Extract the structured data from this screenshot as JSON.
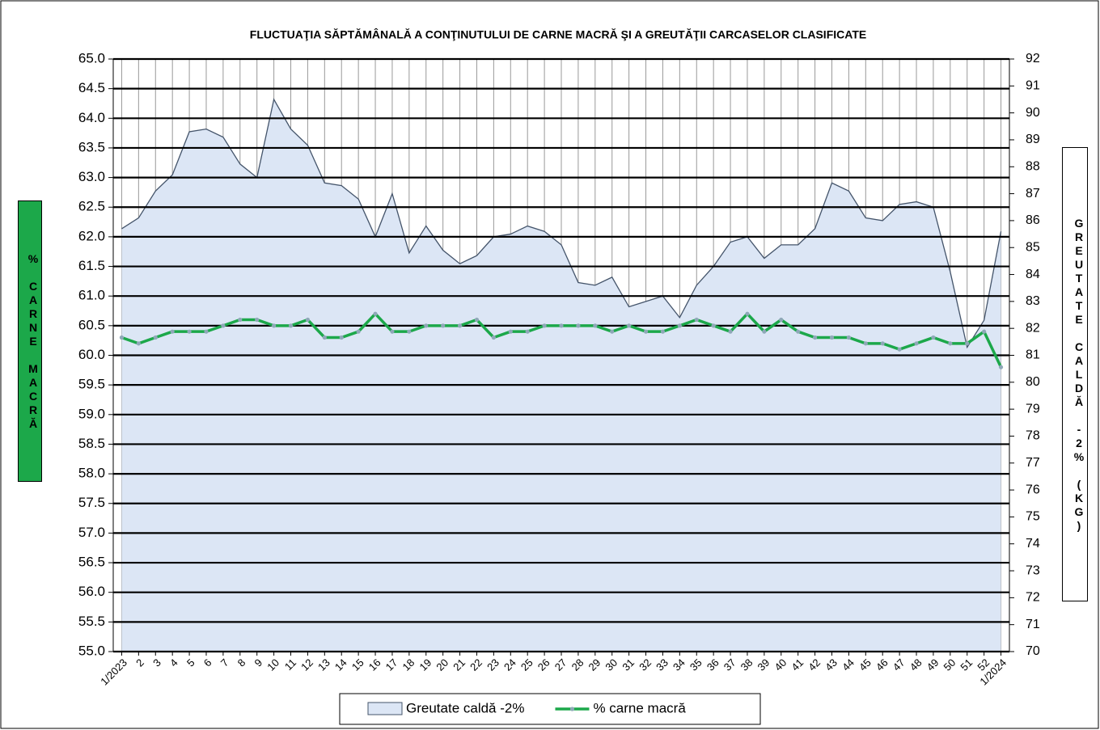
{
  "chart_data": {
    "type": "combo",
    "title": "FLUCTUAŢIA SĂPTĂMÂNALĂ  A CONŢINUTULUI DE CARNE MACRĂ ŞI A GREUTĂŢII CARCASELOR CLASIFICATE",
    "y_label": "% CARNE MACRĂ",
    "y2_label": "GREUTATE CALDĂ -2% (KG)",
    "categories": [
      "1/2023",
      "2",
      "3",
      "4",
      "5",
      "6",
      "7",
      "8",
      "9",
      "10",
      "11",
      "12",
      "13",
      "14",
      "15",
      "16",
      "17",
      "18",
      "19",
      "20",
      "21",
      "22",
      "23",
      "24",
      "25",
      "26",
      "27",
      "28",
      "29",
      "30",
      "31",
      "32",
      "33",
      "34",
      "35",
      "36",
      "37",
      "38",
      "39",
      "40",
      "41",
      "42",
      "43",
      "44",
      "45",
      "46",
      "47",
      "48",
      "49",
      "50",
      "51",
      "52",
      "1/2024"
    ],
    "series": [
      {
        "name": "Greutate caldă -2%",
        "type": "area",
        "axis": "y2",
        "color": "#dce6f5",
        "line_color": "#44546a",
        "values": [
          85.7,
          86.1,
          87.1,
          87.7,
          89.3,
          89.4,
          89.1,
          88.1,
          87.6,
          90.5,
          89.4,
          88.8,
          87.4,
          87.3,
          86.8,
          85.4,
          87.0,
          84.8,
          85.8,
          84.9,
          84.4,
          84.7,
          85.4,
          85.5,
          85.8,
          85.6,
          85.1,
          83.7,
          83.6,
          83.9,
          82.8,
          83.0,
          83.2,
          82.4,
          83.6,
          84.3,
          85.2,
          85.4,
          84.6,
          85.1,
          85.1,
          85.7,
          87.4,
          87.1,
          86.1,
          86.0,
          86.6,
          86.7,
          86.5,
          84.1,
          81.3,
          82.3,
          85.6
        ]
      },
      {
        "name": "% carne macră",
        "type": "line",
        "color": "#1ca84a",
        "marker_color": "#8fa8b8",
        "values": [
          60.3,
          60.2,
          60.3,
          60.4,
          60.4,
          60.4,
          60.5,
          60.6,
          60.6,
          60.5,
          60.5,
          60.6,
          60.3,
          60.3,
          60.4,
          60.7,
          60.4,
          60.4,
          60.5,
          60.5,
          60.5,
          60.6,
          60.3,
          60.4,
          60.4,
          60.5,
          60.5,
          60.5,
          60.5,
          60.4,
          60.5,
          60.4,
          60.4,
          60.5,
          60.6,
          60.5,
          60.4,
          60.7,
          60.4,
          60.6,
          60.4,
          60.3,
          60.3,
          60.3,
          60.2,
          60.2,
          60.1,
          60.2,
          60.3,
          60.2,
          60.2,
          60.4,
          59.8
        ]
      }
    ],
    "ylim": [
      55,
      65
    ],
    "yticks": [
      {
        "value": 55,
        "label": "55.0"
      },
      55.5,
      {
        "value": 56,
        "label": "56.0"
      },
      56.5,
      {
        "value": 57,
        "label": "57.0"
      },
      57.5,
      {
        "value": 58,
        "label": "58.0"
      },
      58.5,
      {
        "value": 59,
        "label": "59.0"
      },
      59.5,
      {
        "value": 60,
        "label": "60.0"
      },
      60.5,
      {
        "value": 61,
        "label": "61.0"
      },
      61.5,
      {
        "value": 62,
        "label": "62.0"
      },
      62.5,
      {
        "value": 63,
        "label": "63.0"
      },
      63.5,
      {
        "value": 64,
        "label": "64.0"
      },
      64.5,
      {
        "value": 65,
        "label": "65.0"
      }
    ],
    "y2lim": [
      70,
      92
    ],
    "y2ticks": [
      70,
      71,
      72,
      73,
      74,
      75,
      76,
      77,
      78,
      79,
      80,
      81,
      82,
      83,
      84,
      85,
      86,
      87,
      88,
      89,
      90,
      91,
      92
    ],
    "grid": true
  }
}
